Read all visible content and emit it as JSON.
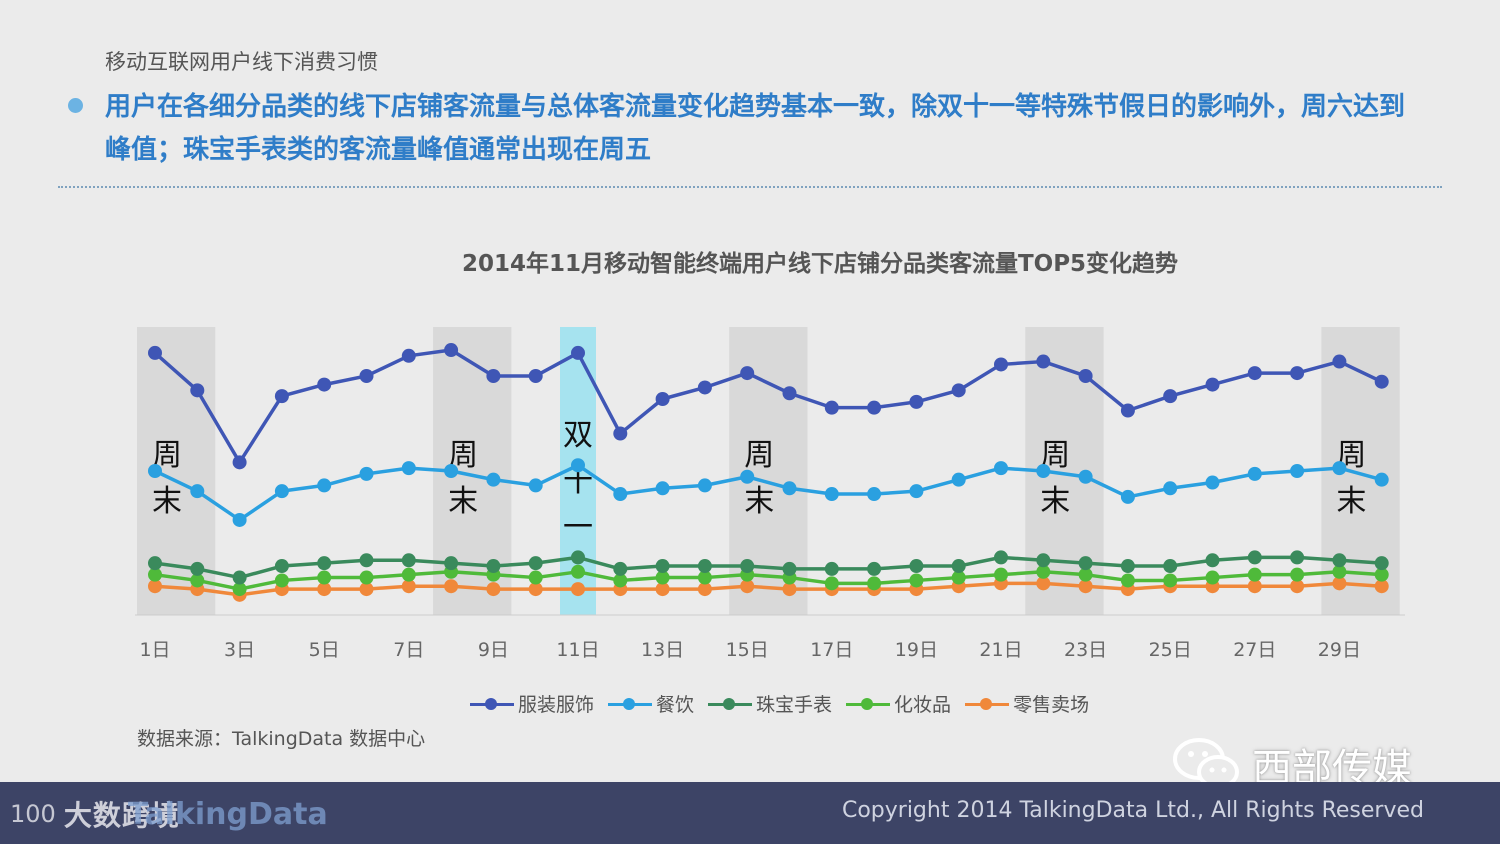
{
  "header": {
    "breadcrumb": "移动互联网用户线下消费习惯",
    "headline": "用户在各细分品类的线下店铺客流量与总体客流量变化趋势基本一致，除双十一等特殊节假日的影响外，周六达到峰值；珠宝手表类的客流量峰值通常出现在周五"
  },
  "colors": {
    "headline": "#2f7dc8",
    "weekend_band": "#d9d9d9",
    "double11_band": "#a6e3ef",
    "footer": "#3d4466"
  },
  "chart_data": {
    "type": "line",
    "title": "2014年11月移动智能终端用户线下店铺分品类客流量TOP5变化趋势",
    "x": [
      1,
      2,
      3,
      4,
      5,
      6,
      7,
      8,
      9,
      10,
      11,
      12,
      13,
      14,
      15,
      16,
      17,
      18,
      19,
      20,
      21,
      22,
      23,
      24,
      25,
      26,
      27,
      28,
      29,
      30
    ],
    "x_tick_labels": [
      "1日",
      "3日",
      "5日",
      "7日",
      "9日",
      "11日",
      "13日",
      "15日",
      "17日",
      "19日",
      "21日",
      "23日",
      "25日",
      "27日",
      "29日"
    ],
    "ylim": [
      0,
      100
    ],
    "grid": false,
    "legend_position": "bottom",
    "series": [
      {
        "name": "服装服饰",
        "color": "#3f56b5",
        "values": [
          91,
          78,
          53,
          76,
          80,
          83,
          90,
          92,
          83,
          83,
          91,
          63,
          75,
          79,
          84,
          77,
          72,
          72,
          74,
          78,
          87,
          88,
          83,
          71,
          76,
          80,
          84,
          84,
          88,
          81
        ]
      },
      {
        "name": "餐饮",
        "color": "#2aa0e0",
        "values": [
          50,
          43,
          33,
          43,
          45,
          49,
          51,
          50,
          47,
          45,
          52,
          42,
          44,
          45,
          48,
          44,
          42,
          42,
          43,
          47,
          51,
          50,
          48,
          41,
          44,
          46,
          49,
          50,
          51,
          47
        ]
      },
      {
        "name": "珠宝手表",
        "color": "#3a8a5c",
        "values": [
          18,
          16,
          13,
          17,
          18,
          19,
          19,
          18,
          17,
          18,
          20,
          16,
          17,
          17,
          17,
          16,
          16,
          16,
          17,
          17,
          20,
          19,
          18,
          17,
          17,
          19,
          20,
          20,
          19,
          18
        ]
      },
      {
        "name": "化妆品",
        "color": "#4fba3a",
        "values": [
          14,
          12,
          9,
          12,
          13,
          13,
          14,
          15,
          14,
          13,
          15,
          12,
          13,
          13,
          14,
          13,
          11,
          11,
          12,
          13,
          14,
          15,
          14,
          12,
          12,
          13,
          14,
          14,
          15,
          14
        ]
      },
      {
        "name": "零售卖场",
        "color": "#f0883a",
        "values": [
          10,
          9,
          7,
          9,
          9,
          9,
          10,
          10,
          9,
          9,
          9,
          9,
          9,
          9,
          10,
          9,
          9,
          9,
          9,
          10,
          11,
          11,
          10,
          9,
          10,
          10,
          10,
          10,
          11,
          10
        ]
      }
    ],
    "bands": [
      {
        "kind": "weekend",
        "from": 1,
        "to": 2,
        "label": [
          "周",
          "末"
        ]
      },
      {
        "kind": "weekend",
        "from": 8,
        "to": 9,
        "label": [
          "周",
          "末"
        ]
      },
      {
        "kind": "double11",
        "from": 11,
        "to": 11,
        "label": [
          "双",
          "十",
          "一"
        ]
      },
      {
        "kind": "weekend",
        "from": 15,
        "to": 16,
        "label": [
          "周",
          "末"
        ]
      },
      {
        "kind": "weekend",
        "from": 22,
        "to": 23,
        "label": [
          "周",
          "末"
        ]
      },
      {
        "kind": "weekend",
        "from": 29,
        "to": 30,
        "label": [
          "周",
          "末"
        ]
      }
    ]
  },
  "source": "数据来源：TalkingData 数据中心",
  "watermark": {
    "wechat_icon": "wechat-icon",
    "name": "西部传媒"
  },
  "footer": {
    "copyright": "Copyright 2014 TalkingData Ltd., All Rights Reserved",
    "logo_100": "100",
    "logo_cn": "大数跨境",
    "logo_td": "TalkingData"
  }
}
